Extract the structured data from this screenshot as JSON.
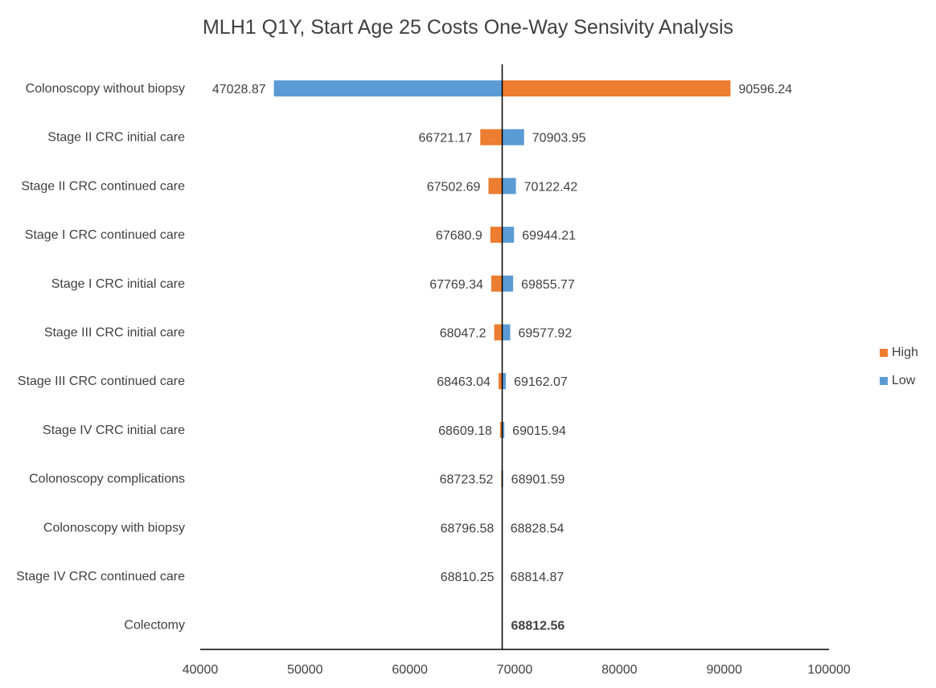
{
  "colors": {
    "high": "#ED7D31",
    "low": "#5B9BD5",
    "axis": "#000000",
    "text": "#404040"
  },
  "chart_data": {
    "type": "bar",
    "orientation": "horizontal-tornado",
    "title": "MLH1 Q1Y, Start Age 25 Costs One-Way Sensivity Analysis",
    "baseline": 68812.56,
    "xlim": [
      40000,
      100000
    ],
    "x_ticks": [
      "40000",
      "50000",
      "60000",
      "70000",
      "80000",
      "90000",
      "100000"
    ],
    "x_tick_values": [
      40000,
      50000,
      60000,
      70000,
      80000,
      90000,
      100000
    ],
    "grid": false,
    "legend": {
      "placement": "right",
      "entries": [
        {
          "name": "High",
          "color": "#ED7D31"
        },
        {
          "name": "Low",
          "color": "#5B9BD5"
        }
      ]
    },
    "categories": [
      "Colonoscopy without biopsy",
      "Stage II CRC initial care",
      "Stage II CRC continued care",
      "Stage I CRC continued care",
      "Stage I CRC initial care",
      "Stage III CRC initial care",
      "Stage III CRC continued care",
      "Stage IV CRC initial care",
      "Colonoscopy complications",
      "Colonoscopy with biopsy",
      "Stage IV CRC continued care",
      "Colectomy"
    ],
    "series": [
      {
        "name": "High",
        "values": [
          90596.24,
          66721.17,
          67502.69,
          67680.9,
          67769.34,
          68047.2,
          68463.04,
          68609.18,
          68723.52,
          68796.58,
          68810.25,
          68812.56
        ]
      },
      {
        "name": "Low",
        "values": [
          47028.87,
          70903.95,
          70122.42,
          69944.21,
          69855.77,
          69577.92,
          69162.07,
          69015.94,
          68901.59,
          68828.54,
          68814.87,
          68812.56
        ]
      }
    ],
    "left_labels": [
      "47028.87",
      "66721.17",
      "67502.69",
      "67680.9",
      "67769.34",
      "68047.2",
      "68463.04",
      "68609.18",
      "68723.52",
      "68796.58",
      "68810.25",
      ""
    ],
    "right_labels": [
      "90596.24",
      "70903.95",
      "70122.42",
      "69944.21",
      "69855.77",
      "69577.92",
      "69162.07",
      "69015.94",
      "68901.59",
      "68828.54",
      "68814.87",
      "68812.56"
    ]
  }
}
